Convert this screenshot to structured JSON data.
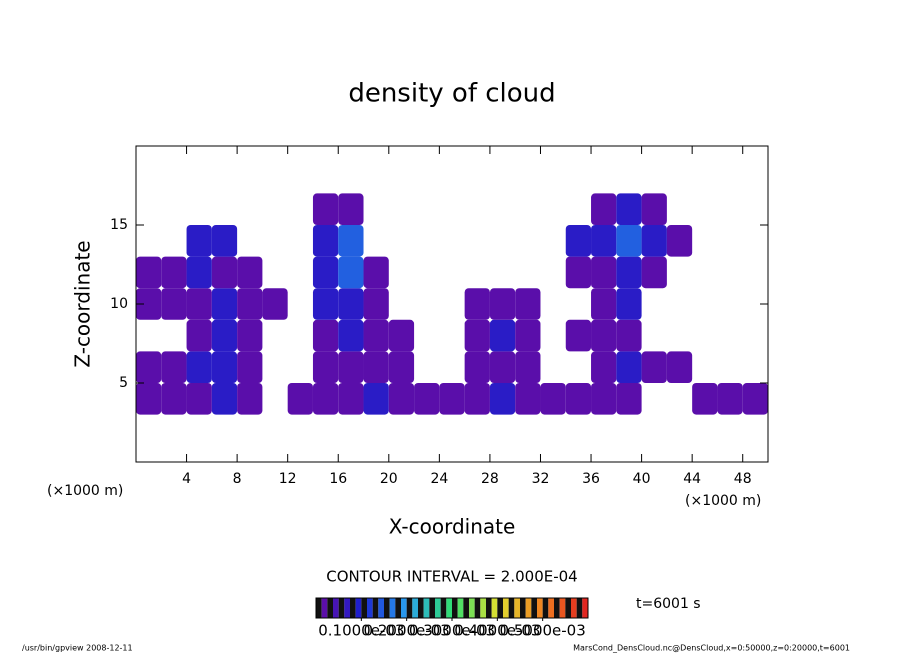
{
  "chart_data": {
    "type": "contour",
    "title": "density of cloud",
    "x_label": "X-coordinate",
    "y_label": "Z-coordinate",
    "x_unit_label": "(×1000 m)",
    "contour_note": "CONTOUR INTERVAL = 2.000E-04",
    "time_note": "t=6001 s",
    "footer_left": "/usr/bin/gpview   2008-12-11",
    "footer_right": "MarsCond_DensCloud.nc@DensCloud,x=0:50000,z=0:20000,t=6001",
    "xlim": [
      0,
      50
    ],
    "ylim": [
      0,
      20
    ],
    "xticks": [
      4,
      8,
      12,
      16,
      20,
      24,
      28,
      32,
      36,
      40,
      44,
      48
    ],
    "yticks": [
      5,
      10,
      15
    ],
    "x": [
      1,
      3,
      5,
      7,
      9,
      11,
      13,
      15,
      17,
      19,
      21,
      23,
      25,
      27,
      29,
      31,
      33,
      35,
      37,
      39,
      41,
      43,
      45,
      47,
      49
    ],
    "z": [
      4,
      6,
      8,
      10,
      12,
      14,
      16
    ],
    "values": [
      [
        2e-05,
        2e-05,
        2e-05,
        8e-05,
        2e-05,
        0,
        2e-05,
        2e-05,
        2e-05,
        8e-05,
        2e-05,
        2e-05,
        2e-05,
        2e-05,
        8e-05,
        2e-05,
        2e-05,
        2e-05,
        2e-05,
        2e-05,
        0,
        0,
        2e-05,
        2e-05,
        2e-05
      ],
      [
        2e-05,
        2e-05,
        8e-05,
        8e-05,
        2e-05,
        0,
        0,
        2e-05,
        2e-05,
        2e-05,
        2e-05,
        0,
        0,
        2e-05,
        2e-05,
        2e-05,
        0,
        0,
        2e-05,
        8e-05,
        2e-05,
        2e-05,
        0,
        0,
        0
      ],
      [
        0,
        0,
        2e-05,
        8e-05,
        2e-05,
        0,
        0,
        2e-05,
        8e-05,
        2e-05,
        2e-05,
        0,
        0,
        2e-05,
        8e-05,
        2e-05,
        0,
        2e-05,
        2e-05,
        2e-05,
        0,
        0,
        0,
        0,
        0
      ],
      [
        2e-05,
        2e-05,
        2e-05,
        8e-05,
        2e-05,
        2e-05,
        0,
        8e-05,
        8e-05,
        2e-05,
        0,
        0,
        0,
        2e-05,
        2e-05,
        2e-05,
        0,
        0,
        2e-05,
        8e-05,
        0,
        0,
        0,
        0,
        0
      ],
      [
        2e-05,
        2e-05,
        8e-05,
        2e-05,
        2e-05,
        0,
        0,
        8e-05,
        0.00015,
        2e-05,
        0,
        0,
        0,
        0,
        0,
        0,
        0,
        2e-05,
        2e-05,
        8e-05,
        2e-05,
        0,
        0,
        0,
        0
      ],
      [
        0,
        0,
        8e-05,
        8e-05,
        0,
        0,
        0,
        8e-05,
        0.00015,
        0,
        0,
        0,
        0,
        0,
        0,
        0,
        0,
        8e-05,
        8e-05,
        0.00015,
        8e-05,
        2e-05,
        0,
        0,
        0
      ],
      [
        0,
        0,
        0,
        0,
        0,
        0,
        0,
        2e-05,
        2e-05,
        0,
        0,
        0,
        0,
        0,
        0,
        0,
        0,
        0,
        2e-05,
        8e-05,
        2e-05,
        0,
        0,
        0,
        0
      ]
    ],
    "clim": [
      0,
      0.0006
    ],
    "colorbar_ticks": [
      {
        "value": 0.0001,
        "label": "0.1000e-03"
      },
      {
        "value": 0.0002,
        "label": "0.2000e-03"
      },
      {
        "value": 0.0003,
        "label": "0.3000e-03"
      },
      {
        "value": 0.0004,
        "label": "0.4000e-03"
      },
      {
        "value": 0.0005,
        "label": "0.5000e-03"
      }
    ],
    "colormap": [
      "#6a0aa0",
      "#1a20d0",
      "#2aa0f0",
      "#30e070",
      "#e0e030",
      "#f08020",
      "#e02020"
    ]
  }
}
